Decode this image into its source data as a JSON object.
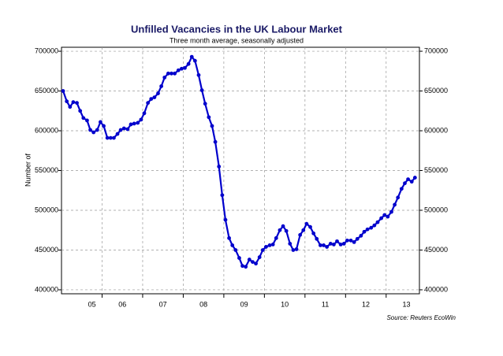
{
  "chart_data": {
    "type": "line",
    "title": "Unfilled Vacancies in the UK Labour Market",
    "subtitle": "Three month average, seasonally adjusted",
    "y_label": "Number of",
    "source": "Source: Reuters EcoWin",
    "x": [
      2005.04,
      2005.13,
      2005.21,
      2005.29,
      2005.38,
      2005.46,
      2005.54,
      2005.63,
      2005.71,
      2005.79,
      2005.88,
      2005.96,
      2006.04,
      2006.13,
      2006.21,
      2006.29,
      2006.38,
      2006.46,
      2006.54,
      2006.63,
      2006.71,
      2006.79,
      2006.88,
      2006.96,
      2007.04,
      2007.13,
      2007.21,
      2007.29,
      2007.38,
      2007.46,
      2007.54,
      2007.63,
      2007.71,
      2007.79,
      2007.88,
      2007.96,
      2008.04,
      2008.13,
      2008.21,
      2008.29,
      2008.38,
      2008.46,
      2008.54,
      2008.63,
      2008.71,
      2008.79,
      2008.88,
      2008.96,
      2009.04,
      2009.13,
      2009.21,
      2009.29,
      2009.38,
      2009.46,
      2009.54,
      2009.63,
      2009.71,
      2009.79,
      2009.88,
      2009.96,
      2010.04,
      2010.13,
      2010.21,
      2010.29,
      2010.38,
      2010.46,
      2010.54,
      2010.63,
      2010.71,
      2010.79,
      2010.88,
      2010.96,
      2011.04,
      2011.13,
      2011.21,
      2011.29,
      2011.38,
      2011.46,
      2011.54,
      2011.63,
      2011.71,
      2011.79,
      2011.88,
      2011.96,
      2012.04,
      2012.13,
      2012.21,
      2012.29,
      2012.38,
      2012.46,
      2012.54,
      2012.63,
      2012.71,
      2012.79,
      2012.88,
      2012.96,
      2013.04,
      2013.13,
      2013.21,
      2013.29,
      2013.38,
      2013.46,
      2013.54,
      2013.63,
      2013.71
    ],
    "series": [
      {
        "color": "#0000cc",
        "values": [
          650000,
          637000,
          630000,
          636000,
          635000,
          625000,
          616000,
          613000,
          601000,
          598000,
          601000,
          611000,
          606000,
          591000,
          591000,
          591000,
          596000,
          601000,
          603000,
          602000,
          608000,
          609000,
          610000,
          614000,
          622000,
          635000,
          640000,
          642000,
          647000,
          656000,
          667000,
          672000,
          672000,
          672000,
          676000,
          678000,
          679000,
          684000,
          693000,
          688000,
          670000,
          651000,
          634000,
          617000,
          606000,
          586000,
          555000,
          519000,
          488000,
          465000,
          456000,
          450000,
          440000,
          430000,
          429000,
          438000,
          435000,
          433000,
          441000,
          450000,
          454000,
          456000,
          457000,
          465000,
          475000,
          480000,
          474000,
          458000,
          450000,
          451000,
          469000,
          475000,
          483000,
          479000,
          471000,
          464000,
          456000,
          456000,
          454000,
          458000,
          457000,
          461000,
          457000,
          458000,
          462000,
          462000,
          460000,
          464000,
          468000,
          473000,
          476000,
          478000,
          481000,
          485000,
          490000,
          494000,
          492000,
          498000,
          507000,
          516000,
          527000,
          534000,
          539000,
          536000,
          541000
        ]
      }
    ],
    "xlim": [
      2005,
      2013.82
    ],
    "xticks": [
      {
        "value": 2005.75,
        "label": "05"
      },
      {
        "value": 2006.5,
        "label": "06"
      },
      {
        "value": 2007.5,
        "label": "07"
      },
      {
        "value": 2008.5,
        "label": "08"
      },
      {
        "value": 2009.5,
        "label": "09"
      },
      {
        "value": 2010.5,
        "label": "10"
      },
      {
        "value": 2011.5,
        "label": "11"
      },
      {
        "value": 2012.5,
        "label": "12"
      },
      {
        "value": 2013.5,
        "label": "13"
      }
    ],
    "x_minor_ticks": [
      2006,
      2007,
      2008,
      2009,
      2010,
      2011,
      2012,
      2013
    ],
    "ylim": [
      395000,
      705000
    ],
    "yticks": [
      400000,
      450000,
      500000,
      550000,
      600000,
      650000,
      700000
    ],
    "grid": true
  }
}
